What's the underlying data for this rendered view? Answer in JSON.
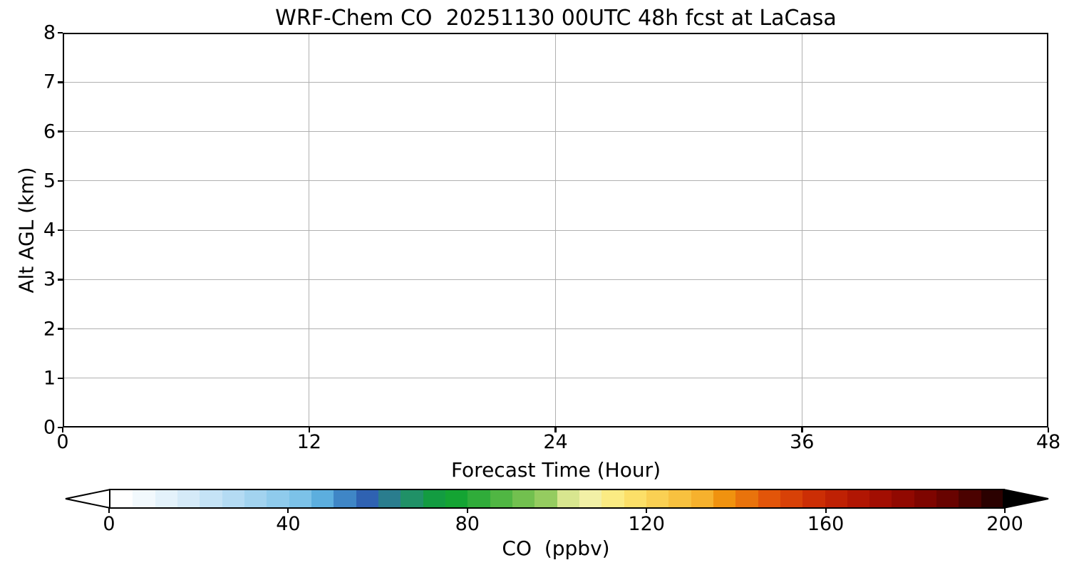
{
  "title": "WRF-Chem CO  20251130 00UTC 48h fcst at LaCasa",
  "colors": {
    "background": "#ffffff",
    "spine": "#000000",
    "grid": "#b0b0b0",
    "text": "#000000"
  },
  "chart_data": {
    "type": "heatmap",
    "title": "WRF-Chem CO  20251130 00UTC 48h fcst at LaCasa",
    "xlabel": "Forecast Time (Hour)",
    "ylabel": "Alt AGL (km)",
    "xlim": [
      0,
      48
    ],
    "ylim": [
      0,
      8
    ],
    "x_ticks": [
      0,
      12,
      24,
      36,
      48
    ],
    "y_ticks": [
      0,
      1,
      2,
      3,
      4,
      5,
      6,
      7,
      8
    ],
    "grid": true,
    "series": [],
    "colorbar": {
      "label": "CO  (ppbv)",
      "range": [
        0,
        200
      ],
      "ticks": [
        0,
        40,
        80,
        120,
        160,
        200
      ],
      "extend": "both",
      "under_color": "#ffffff",
      "over_color": "#000000",
      "segment_colors": [
        "#ffffff",
        "#f2f9fd",
        "#e4f2fb",
        "#d5eaf8",
        "#c5e3f6",
        "#b4dbf3",
        "#a2d3ef",
        "#8fcbec",
        "#7cc2e8",
        "#5caede",
        "#3f86c6",
        "#2f62b2",
        "#2a7d8e",
        "#209167",
        "#139c41",
        "#14a433",
        "#30ac3a",
        "#50b643",
        "#72c04f",
        "#95cc60",
        "#d8e68f",
        "#f2f0a6",
        "#fbeb83",
        "#fcdf68",
        "#fad053",
        "#f8c13f",
        "#f6b12d",
        "#f0920f",
        "#e9730c",
        "#e25509",
        "#d84107",
        "#cc2e05",
        "#bf2104",
        "#b11603",
        "#a20e02",
        "#910901",
        "#7e0500",
        "#680300",
        "#4b0200",
        "#2b0100"
      ]
    }
  }
}
